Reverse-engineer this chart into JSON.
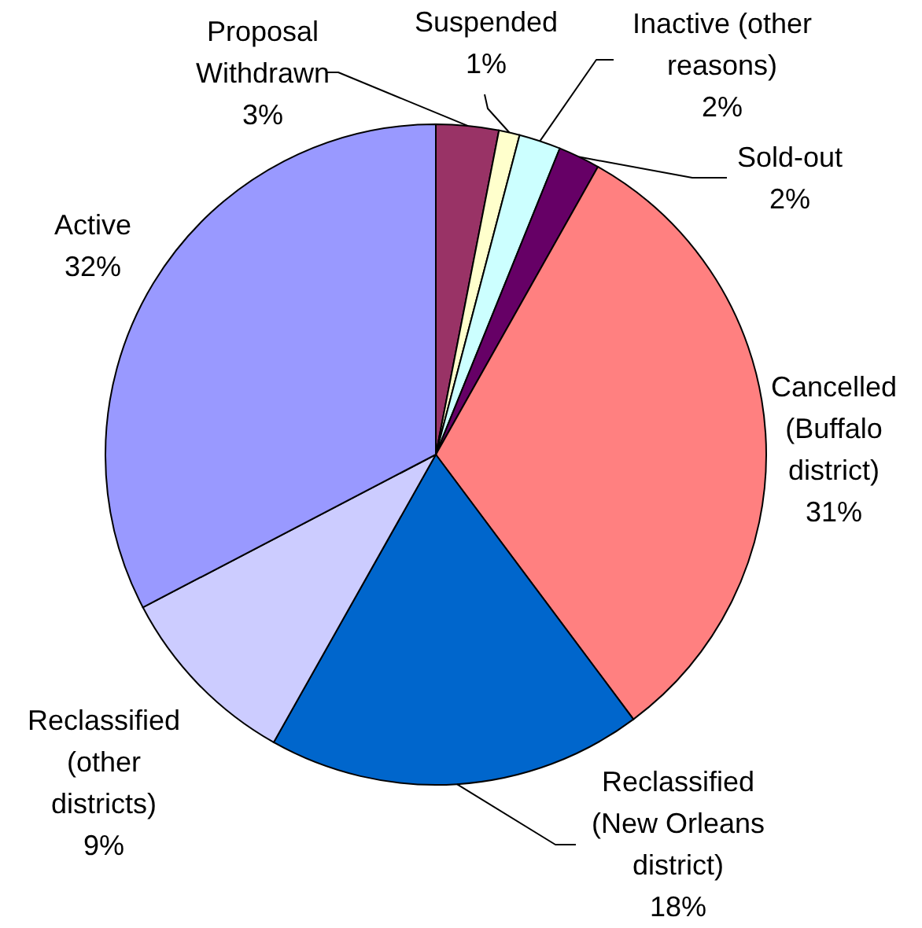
{
  "chart_data": {
    "type": "pie",
    "categories": [
      "Proposal Withdrawn",
      "Suspended",
      "Inactive (other reasons)",
      "Sold-out",
      "Cancelled (Buffalo district)",
      "Reclassified (New Orleans district)",
      "Reclassified (other districts)",
      "Active"
    ],
    "values": [
      3,
      1,
      2,
      2,
      31,
      18,
      9,
      32
    ],
    "colors": [
      "#993366",
      "#ffffcc",
      "#ccffff",
      "#660066",
      "#ff8080",
      "#0066cc",
      "#ccccff",
      "#9999ff"
    ],
    "value_labels": [
      "3%",
      "1%",
      "2%",
      "2%",
      "31%",
      "18%",
      "9%",
      "32%"
    ]
  }
}
